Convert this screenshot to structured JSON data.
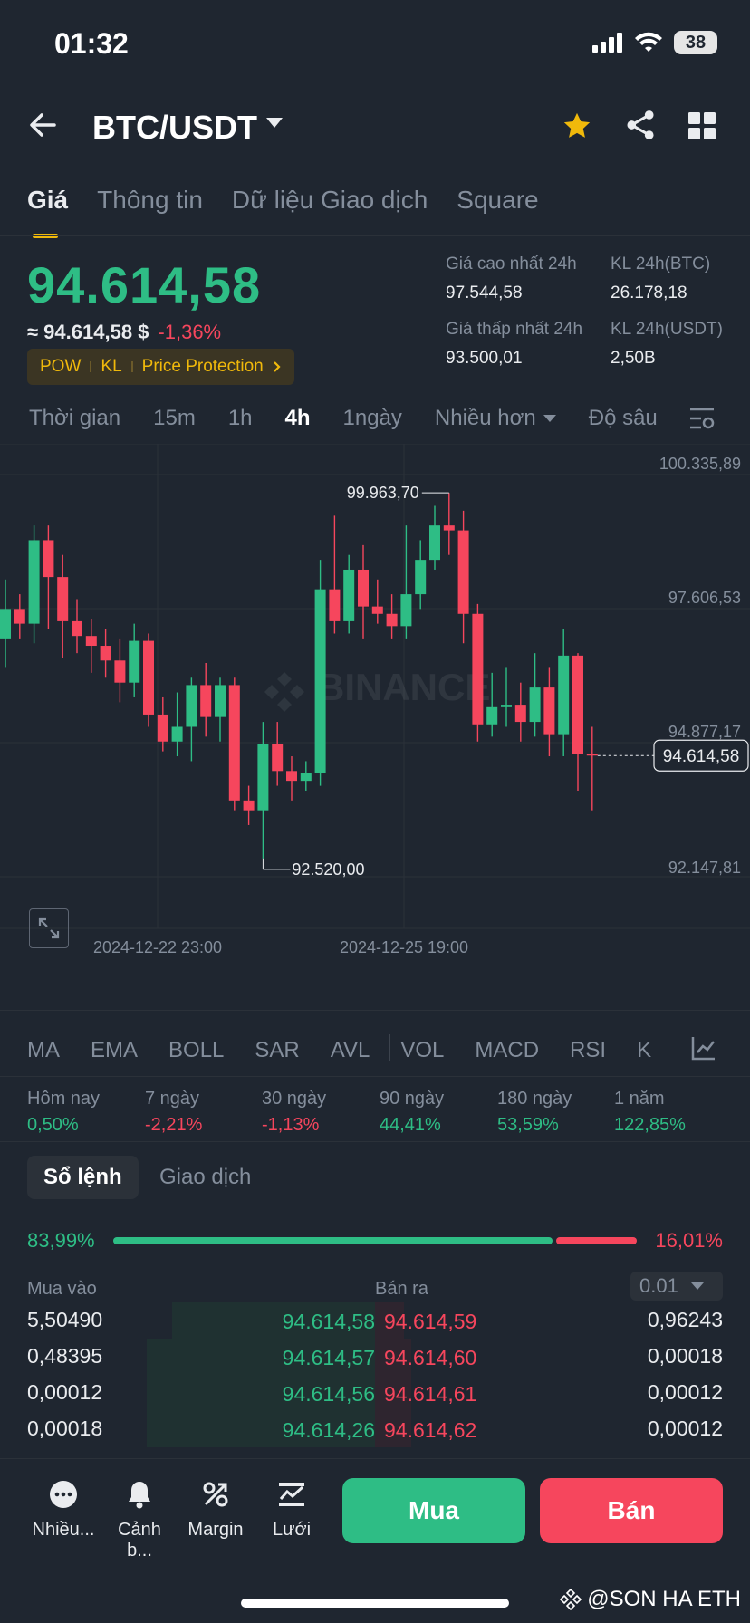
{
  "status": {
    "time": "01:32",
    "battery": "38"
  },
  "header": {
    "pair": "BTC/USDT"
  },
  "tabs": [
    "Giá",
    "Thông tin",
    "Dữ liệu Giao dịch",
    "Square"
  ],
  "price": {
    "last": "94.614,58",
    "usd": "≈ 94.614,58 $",
    "change": "-1,36%",
    "tags": [
      "POW",
      "KL",
      "Price Protection"
    ]
  },
  "stats": {
    "high_label": "Giá cao nhất 24h",
    "high": "97.544,58",
    "low_label": "Giá thấp nhất 24h",
    "low": "93.500,01",
    "vol_btc_label": "KL 24h(BTC)",
    "vol_btc": "26.178,18",
    "vol_usdt_label": "KL 24h(USDT)",
    "vol_usdt": "2,50B"
  },
  "timeframes": {
    "items": [
      "Thời gian",
      "15m",
      "1h",
      "4h",
      "1ngày"
    ],
    "more": "Nhiều hơn",
    "depth": "Độ sâu",
    "active": "4h"
  },
  "chart_data": {
    "type": "candlestick",
    "interval": "4h",
    "y_ticks": [
      "100.335,89",
      "97.606,53",
      "94.877,17",
      "92.147,81"
    ],
    "y_tick_values": [
      100335.89,
      97606.53,
      94877.17,
      92147.81
    ],
    "x_ticks": [
      "2024-12-22 23:00",
      "2024-12-25 19:00"
    ],
    "high_marker": "99.963,70",
    "low_marker": "92.520,00",
    "current_price_label": "94.614,58",
    "watermark": "BINANCE",
    "candles": [
      {
        "o": 97000,
        "c": 97600,
        "h": 98200,
        "l": 96400
      },
      {
        "o": 97600,
        "c": 97300,
        "h": 97900,
        "l": 97000
      },
      {
        "o": 97300,
        "c": 99000,
        "h": 99300,
        "l": 96900
      },
      {
        "o": 99000,
        "c": 98250,
        "h": 99300,
        "l": 97200
      },
      {
        "o": 98250,
        "c": 97350,
        "h": 98700,
        "l": 96600
      },
      {
        "o": 97350,
        "c": 97050,
        "h": 97800,
        "l": 96700
      },
      {
        "o": 97050,
        "c": 96850,
        "h": 97400,
        "l": 96300
      },
      {
        "o": 96850,
        "c": 96550,
        "h": 97200,
        "l": 96200
      },
      {
        "o": 96550,
        "c": 96100,
        "h": 97000,
        "l": 95700
      },
      {
        "o": 96100,
        "c": 96950,
        "h": 97300,
        "l": 95800
      },
      {
        "o": 96950,
        "c": 95450,
        "h": 97100,
        "l": 95200
      },
      {
        "o": 95450,
        "c": 94900,
        "h": 95800,
        "l": 94700
      },
      {
        "o": 94900,
        "c": 95200,
        "h": 95900,
        "l": 94600
      },
      {
        "o": 95200,
        "c": 96050,
        "h": 96200,
        "l": 94500
      },
      {
        "o": 96050,
        "c": 95400,
        "h": 96500,
        "l": 95000
      },
      {
        "o": 95400,
        "c": 96050,
        "h": 96200,
        "l": 94900
      },
      {
        "o": 96050,
        "c": 93700,
        "h": 96200,
        "l": 93500
      },
      {
        "o": 93700,
        "c": 93500,
        "h": 94000,
        "l": 93200
      },
      {
        "o": 93500,
        "c": 94850,
        "h": 95300,
        "l": 92520
      },
      {
        "o": 94850,
        "c": 94300,
        "h": 95300,
        "l": 94000
      },
      {
        "o": 94300,
        "c": 94100,
        "h": 94600,
        "l": 93700
      },
      {
        "o": 94100,
        "c": 94250,
        "h": 94500,
        "l": 93900
      },
      {
        "o": 94250,
        "c": 98000,
        "h": 98600,
        "l": 94000
      },
      {
        "o": 98000,
        "c": 97350,
        "h": 99500,
        "l": 97100
      },
      {
        "o": 97350,
        "c": 98400,
        "h": 98700,
        "l": 97100
      },
      {
        "o": 98400,
        "c": 97650,
        "h": 98900,
        "l": 97000
      },
      {
        "o": 97650,
        "c": 97500,
        "h": 98200,
        "l": 97300
      },
      {
        "o": 97500,
        "c": 97250,
        "h": 97900,
        "l": 97000
      },
      {
        "o": 97250,
        "c": 97900,
        "h": 99300,
        "l": 97000
      },
      {
        "o": 97900,
        "c": 98600,
        "h": 99000,
        "l": 97600
      },
      {
        "o": 98600,
        "c": 99300,
        "h": 99700,
        "l": 98400
      },
      {
        "o": 99300,
        "c": 99200,
        "h": 99964,
        "l": 98700
      },
      {
        "o": 99200,
        "c": 97500,
        "h": 99600,
        "l": 96900
      },
      {
        "o": 97500,
        "c": 95250,
        "h": 97700,
        "l": 94900
      },
      {
        "o": 95250,
        "c": 95600,
        "h": 96300,
        "l": 95000
      },
      {
        "o": 95600,
        "c": 95650,
        "h": 96400,
        "l": 95200
      },
      {
        "o": 95650,
        "c": 95300,
        "h": 96100,
        "l": 94900
      },
      {
        "o": 95300,
        "c": 96000,
        "h": 96700,
        "l": 95000
      },
      {
        "o": 96000,
        "c": 95050,
        "h": 96400,
        "l": 94600
      },
      {
        "o": 95050,
        "c": 96650,
        "h": 97200,
        "l": 94600
      },
      {
        "o": 96650,
        "c": 94650,
        "h": 96700,
        "l": 93900
      },
      {
        "o": 94650,
        "c": 94614.58,
        "h": 95200,
        "l": 93500
      }
    ]
  },
  "indicators": [
    "MA",
    "EMA",
    "BOLL",
    "SAR",
    "AVL",
    "VOL",
    "MACD",
    "RSI",
    "K"
  ],
  "performance": [
    {
      "label": "Hôm nay",
      "value": "0,50%",
      "dir": "up"
    },
    {
      "label": "7 ngày",
      "value": "-2,21%",
      "dir": "down"
    },
    {
      "label": "30 ngày",
      "value": "-1,13%",
      "dir": "down"
    },
    {
      "label": "90 ngày",
      "value": "44,41%",
      "dir": "up"
    },
    {
      "label": "180 ngày",
      "value": "53,59%",
      "dir": "up"
    },
    {
      "label": "1 năm",
      "value": "122,85%",
      "dir": "up"
    }
  ],
  "orderbook": {
    "tab_active": "Sổ lệnh",
    "tab_other": "Giao dịch",
    "buy_ratio": "83,99%",
    "sell_ratio": "16,01%",
    "buy_ratio_value": 0.8399,
    "buy_header": "Mua vào",
    "sell_header": "Bán ra",
    "precision": "0.01",
    "rows": [
      {
        "bq": "5,50490",
        "bp": "94.614,58",
        "sp": "94.614,59",
        "sq": "0,96243",
        "bd": 0.8,
        "sd": 0.08
      },
      {
        "bq": "0,48395",
        "bp": "94.614,57",
        "sp": "94.614,60",
        "sq": "0,00018",
        "bd": 0.9,
        "sd": 0.1
      },
      {
        "bq": "0,00012",
        "bp": "94.614,56",
        "sp": "94.614,61",
        "sq": "0,00012",
        "bd": 0.9,
        "sd": 0.1
      },
      {
        "bq": "0,00018",
        "bp": "94.614,26",
        "sp": "94.614,62",
        "sq": "0,00012",
        "bd": 0.9,
        "sd": 0.1
      }
    ]
  },
  "bottom_bar": {
    "items": [
      "Nhiều...",
      "Cảnh b...",
      "Margin",
      "Lưới"
    ],
    "buy": "Mua",
    "sell": "Bán"
  },
  "watermark_text": "@SON HA ETH"
}
